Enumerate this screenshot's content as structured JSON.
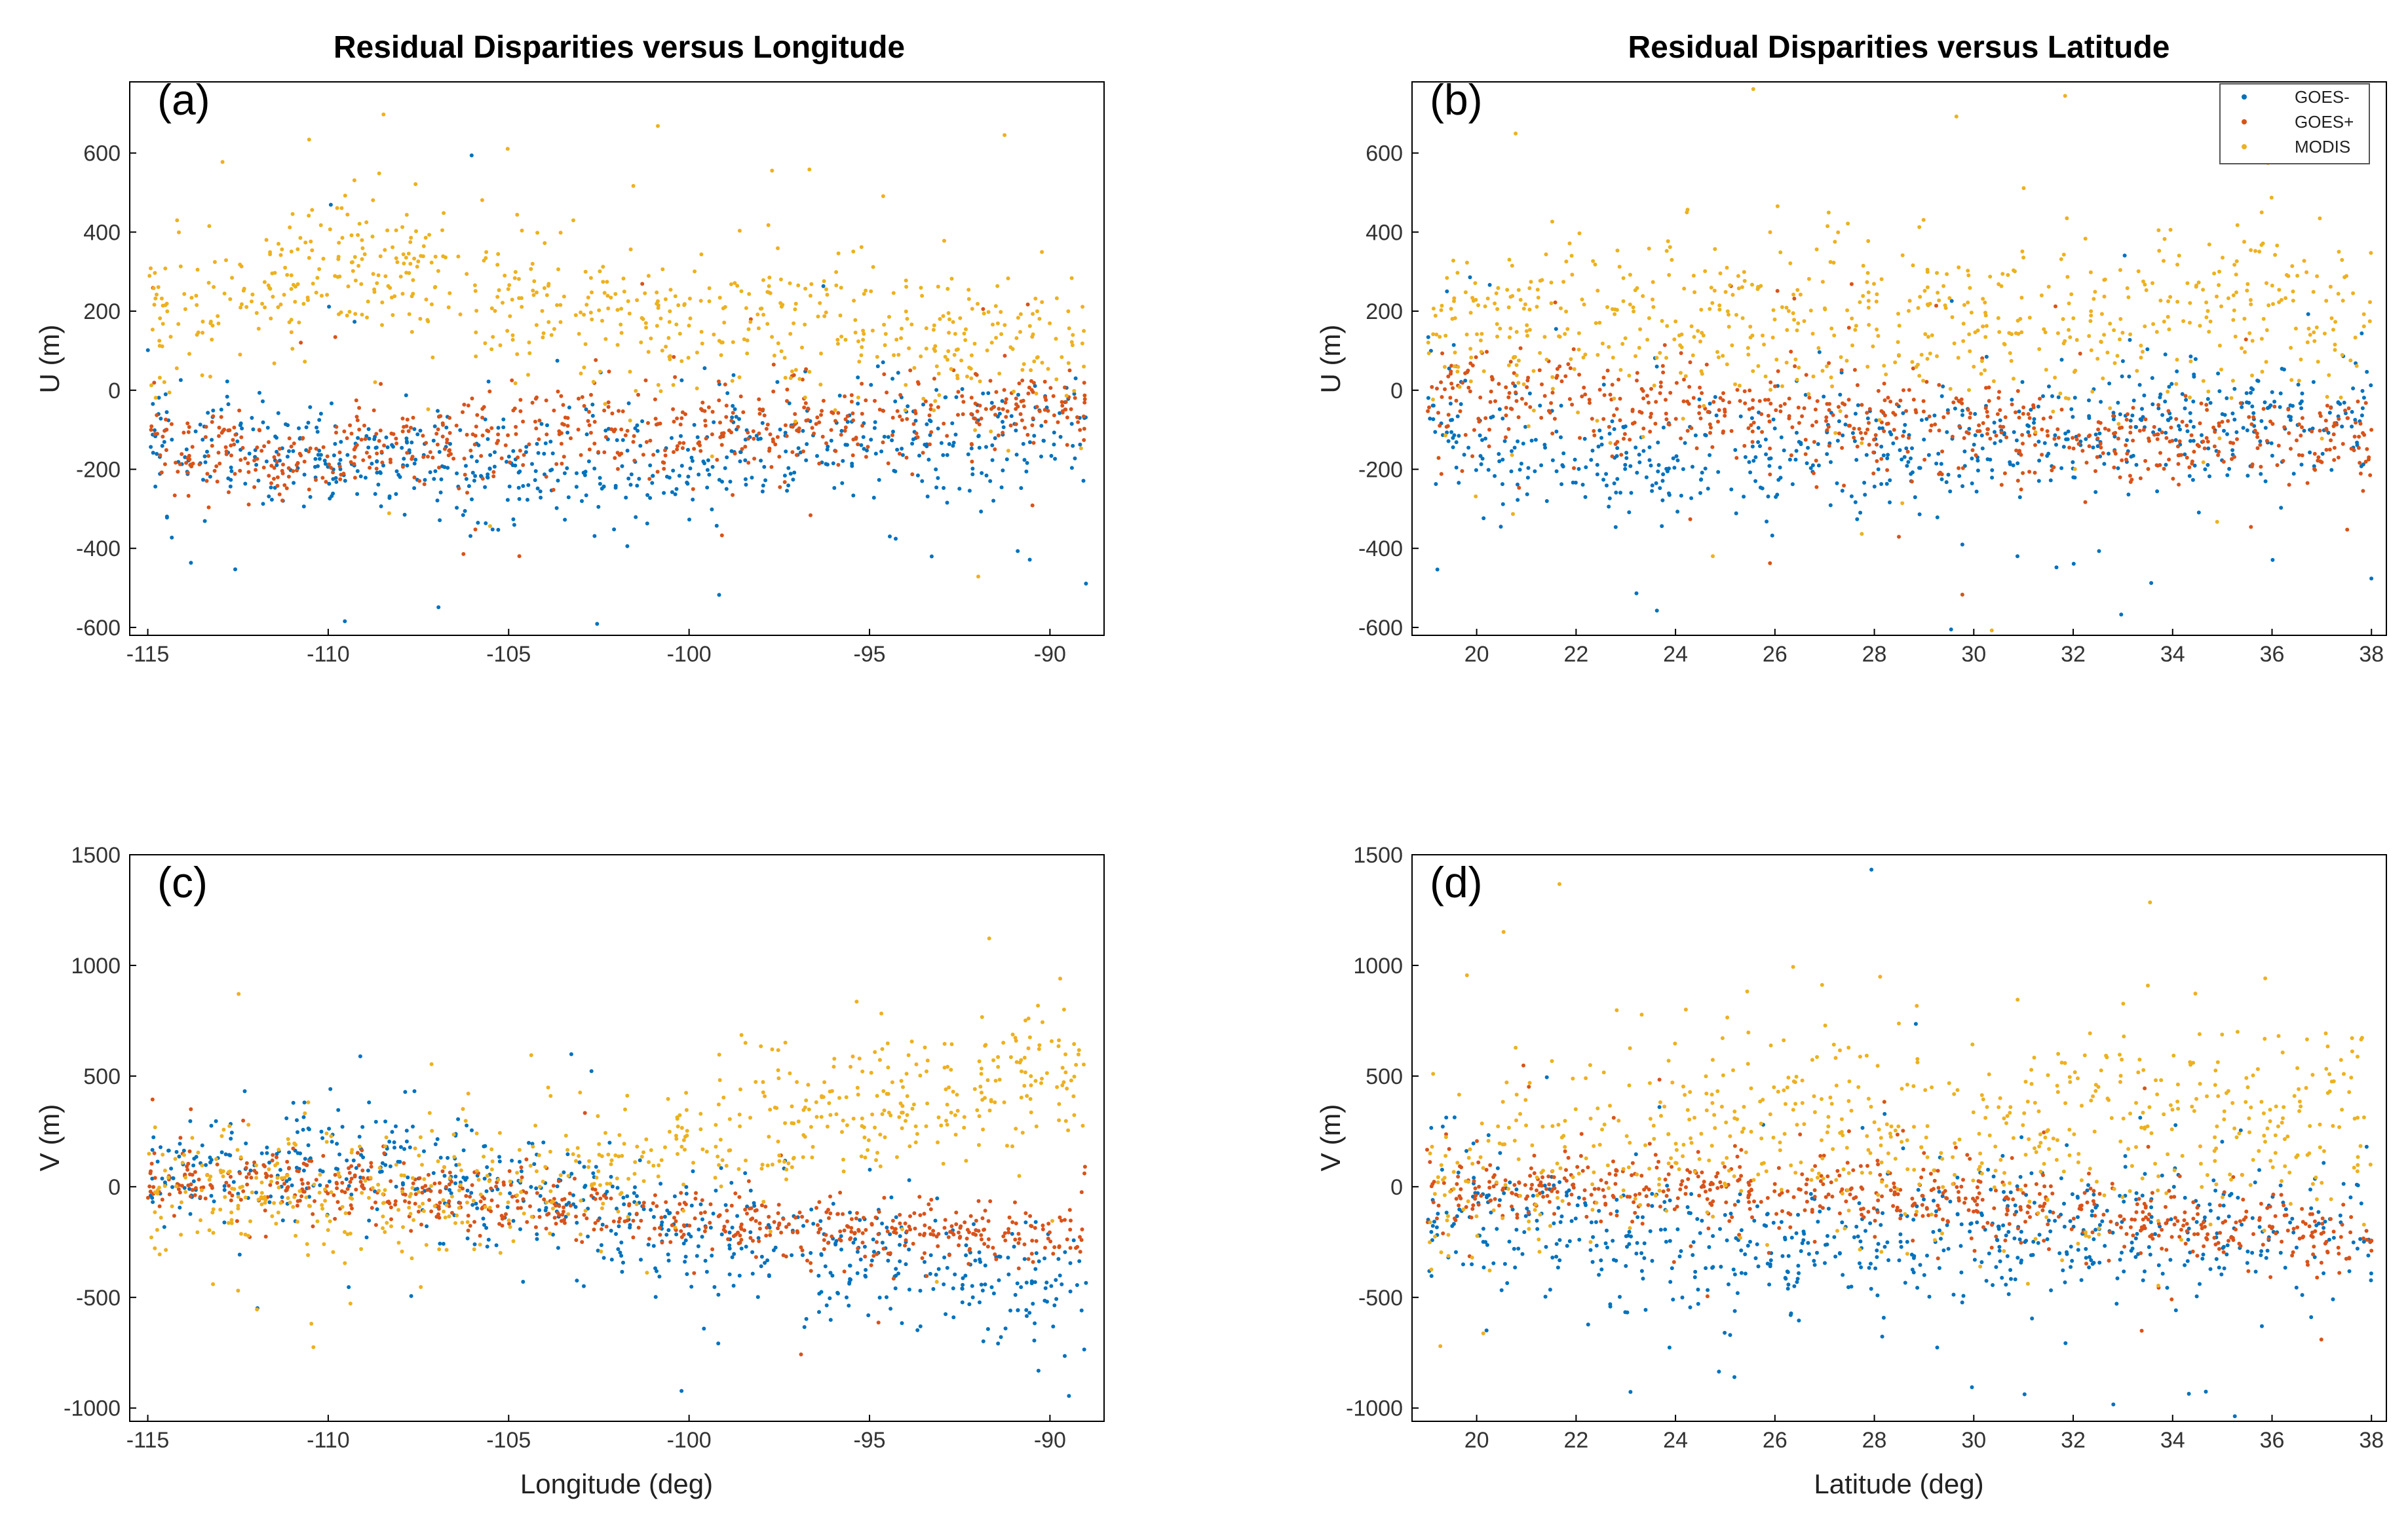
{
  "legend": {
    "items": [
      {
        "label": "GOES-",
        "color": "#0072BD"
      },
      {
        "label": "GOES+",
        "color": "#D95319"
      },
      {
        "label": "MODIS",
        "color": "#EDB120"
      }
    ]
  },
  "chart_data": [
    {
      "id": "a",
      "type": "scatter",
      "panel_label": "(a)",
      "title": "Residual Disparities versus Longitude",
      "xlabel": "",
      "ylabel": "U (m)",
      "xlim": [
        -115.5,
        -88.5
      ],
      "ylim": [
        -620,
        780
      ],
      "xticks": [
        -115,
        -110,
        -105,
        -100,
        -95,
        -90
      ],
      "yticks": [
        -600,
        -400,
        -200,
        0,
        200,
        400,
        600
      ],
      "series": [
        {
          "name": "GOES-",
          "trend": [
            [
              -115,
              -120
            ],
            [
              -110,
              -180
            ],
            [
              -105,
              -190
            ],
            [
              -100,
              -170
            ],
            [
              -95,
              -130
            ],
            [
              -89,
              -80
            ]
          ],
          "spread": 70
        },
        {
          "name": "GOES+",
          "trend": [
            [
              -115,
              -150
            ],
            [
              -110,
              -170
            ],
            [
              -105,
              -110
            ],
            [
              -100,
              -90
            ],
            [
              -95,
              -70
            ],
            [
              -89,
              -30
            ]
          ],
          "spread": 55
        },
        {
          "name": "MODIS",
          "trend": [
            [
              -115,
              150
            ],
            [
              -110,
              330
            ],
            [
              -107,
              270
            ],
            [
              -105,
              230
            ],
            [
              -100,
              170
            ],
            [
              -95,
              150
            ],
            [
              -89,
              110
            ]
          ],
          "spread": 90
        }
      ]
    },
    {
      "id": "b",
      "type": "scatter",
      "panel_label": "(b)",
      "title": "Residual Disparities versus Latitude",
      "xlabel": "",
      "ylabel": "U (m)",
      "xlim": [
        18.7,
        38.3
      ],
      "ylim": [
        -620,
        780
      ],
      "xticks": [
        20,
        22,
        24,
        26,
        28,
        30,
        32,
        34,
        36,
        38
      ],
      "yticks": [
        -600,
        -400,
        -200,
        0,
        200,
        400,
        600
      ],
      "series": [
        {
          "name": "GOES-",
          "trend": [
            [
              19,
              -80
            ],
            [
              21,
              -170
            ],
            [
              24,
              -190
            ],
            [
              27,
              -150
            ],
            [
              30,
              -150
            ],
            [
              33,
              -90
            ],
            [
              38,
              -60
            ]
          ],
          "spread": 80
        },
        {
          "name": "GOES+",
          "trend": [
            [
              19,
              0
            ],
            [
              22,
              -30
            ],
            [
              26,
              -60
            ],
            [
              30,
              -100
            ],
            [
              34,
              -140
            ],
            [
              38,
              -120
            ]
          ],
          "spread": 55
        },
        {
          "name": "MODIS",
          "trend": [
            [
              19,
              180
            ],
            [
              23,
              190
            ],
            [
              27,
              170
            ],
            [
              31,
              180
            ],
            [
              35,
              200
            ],
            [
              38,
              190
            ]
          ],
          "spread": 110
        }
      ]
    },
    {
      "id": "c",
      "type": "scatter",
      "panel_label": "(c)",
      "title": "",
      "xlabel": "Longitude (deg)",
      "ylabel": "V (m)",
      "xlim": [
        -115.5,
        -88.5
      ],
      "ylim": [
        -1060,
        1500
      ],
      "xticks": [
        -115,
        -110,
        -105,
        -100,
        -95,
        -90
      ],
      "yticks": [
        -1000,
        -500,
        0,
        500,
        1000,
        1500
      ],
      "series": [
        {
          "name": "GOES-",
          "trend": [
            [
              -115,
              40
            ],
            [
              -110,
              150
            ],
            [
              -105,
              0
            ],
            [
              -100,
              -200
            ],
            [
              -95,
              -350
            ],
            [
              -89,
              -450
            ]
          ],
          "spread": 130
        },
        {
          "name": "GOES+",
          "trend": [
            [
              -115,
              30
            ],
            [
              -110,
              20
            ],
            [
              -105,
              -60
            ],
            [
              -100,
              -150
            ],
            [
              -95,
              -200
            ],
            [
              -89,
              -200
            ]
          ],
          "spread": 70
        },
        {
          "name": "MODIS",
          "trend": [
            [
              -115,
              0
            ],
            [
              -110,
              -30
            ],
            [
              -105,
              30
            ],
            [
              -100,
              180
            ],
            [
              -95,
              350
            ],
            [
              -89,
              550
            ]
          ],
          "spread": 150
        }
      ]
    },
    {
      "id": "d",
      "type": "scatter",
      "panel_label": "(d)",
      "title": "",
      "xlabel": "Latitude (deg)",
      "ylabel": "V (m)",
      "xlim": [
        18.7,
        38.3
      ],
      "ylim": [
        -1060,
        1500
      ],
      "xticks": [
        20,
        22,
        24,
        26,
        28,
        30,
        32,
        34,
        36,
        38
      ],
      "yticks": [
        -1000,
        -500,
        0,
        500,
        1000,
        1500
      ],
      "series": [
        {
          "name": "GOES-",
          "trend": [
            [
              19,
              -50
            ],
            [
              22,
              -200
            ],
            [
              25,
              -300
            ],
            [
              28,
              -250
            ],
            [
              31,
              -200
            ],
            [
              34,
              -180
            ],
            [
              38,
              -150
            ]
          ],
          "spread": 150
        },
        {
          "name": "GOES+",
          "trend": [
            [
              19,
              0
            ],
            [
              22,
              0
            ],
            [
              26,
              -20
            ],
            [
              30,
              -50
            ],
            [
              34,
              -150
            ],
            [
              38,
              -250
            ]
          ],
          "spread": 80
        },
        {
          "name": "MODIS",
          "trend": [
            [
              19,
              0
            ],
            [
              22,
              180
            ],
            [
              25,
              250
            ],
            [
              28,
              230
            ],
            [
              31,
              220
            ],
            [
              34,
              300
            ],
            [
              38,
              350
            ]
          ],
          "spread": 220
        }
      ]
    }
  ]
}
